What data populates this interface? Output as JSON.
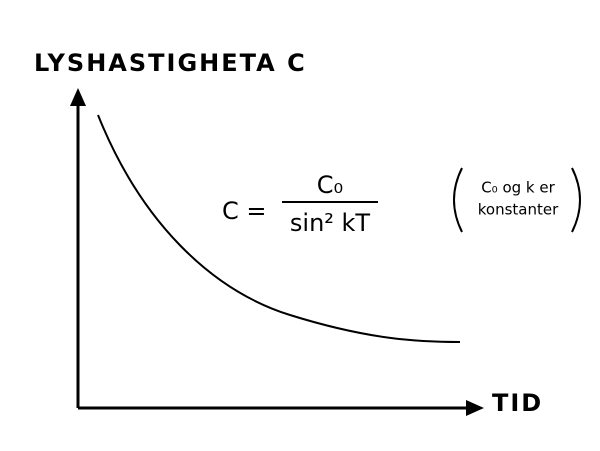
{
  "y_axis_label": "LYSHASTIGHETA C",
  "x_axis_label": "TID",
  "formula": {
    "lhs": "C =",
    "numerator": "C₀",
    "denominator": "sin² kT"
  },
  "note": {
    "lines": [
      "C₀ og k er",
      "konstanter"
    ]
  }
}
